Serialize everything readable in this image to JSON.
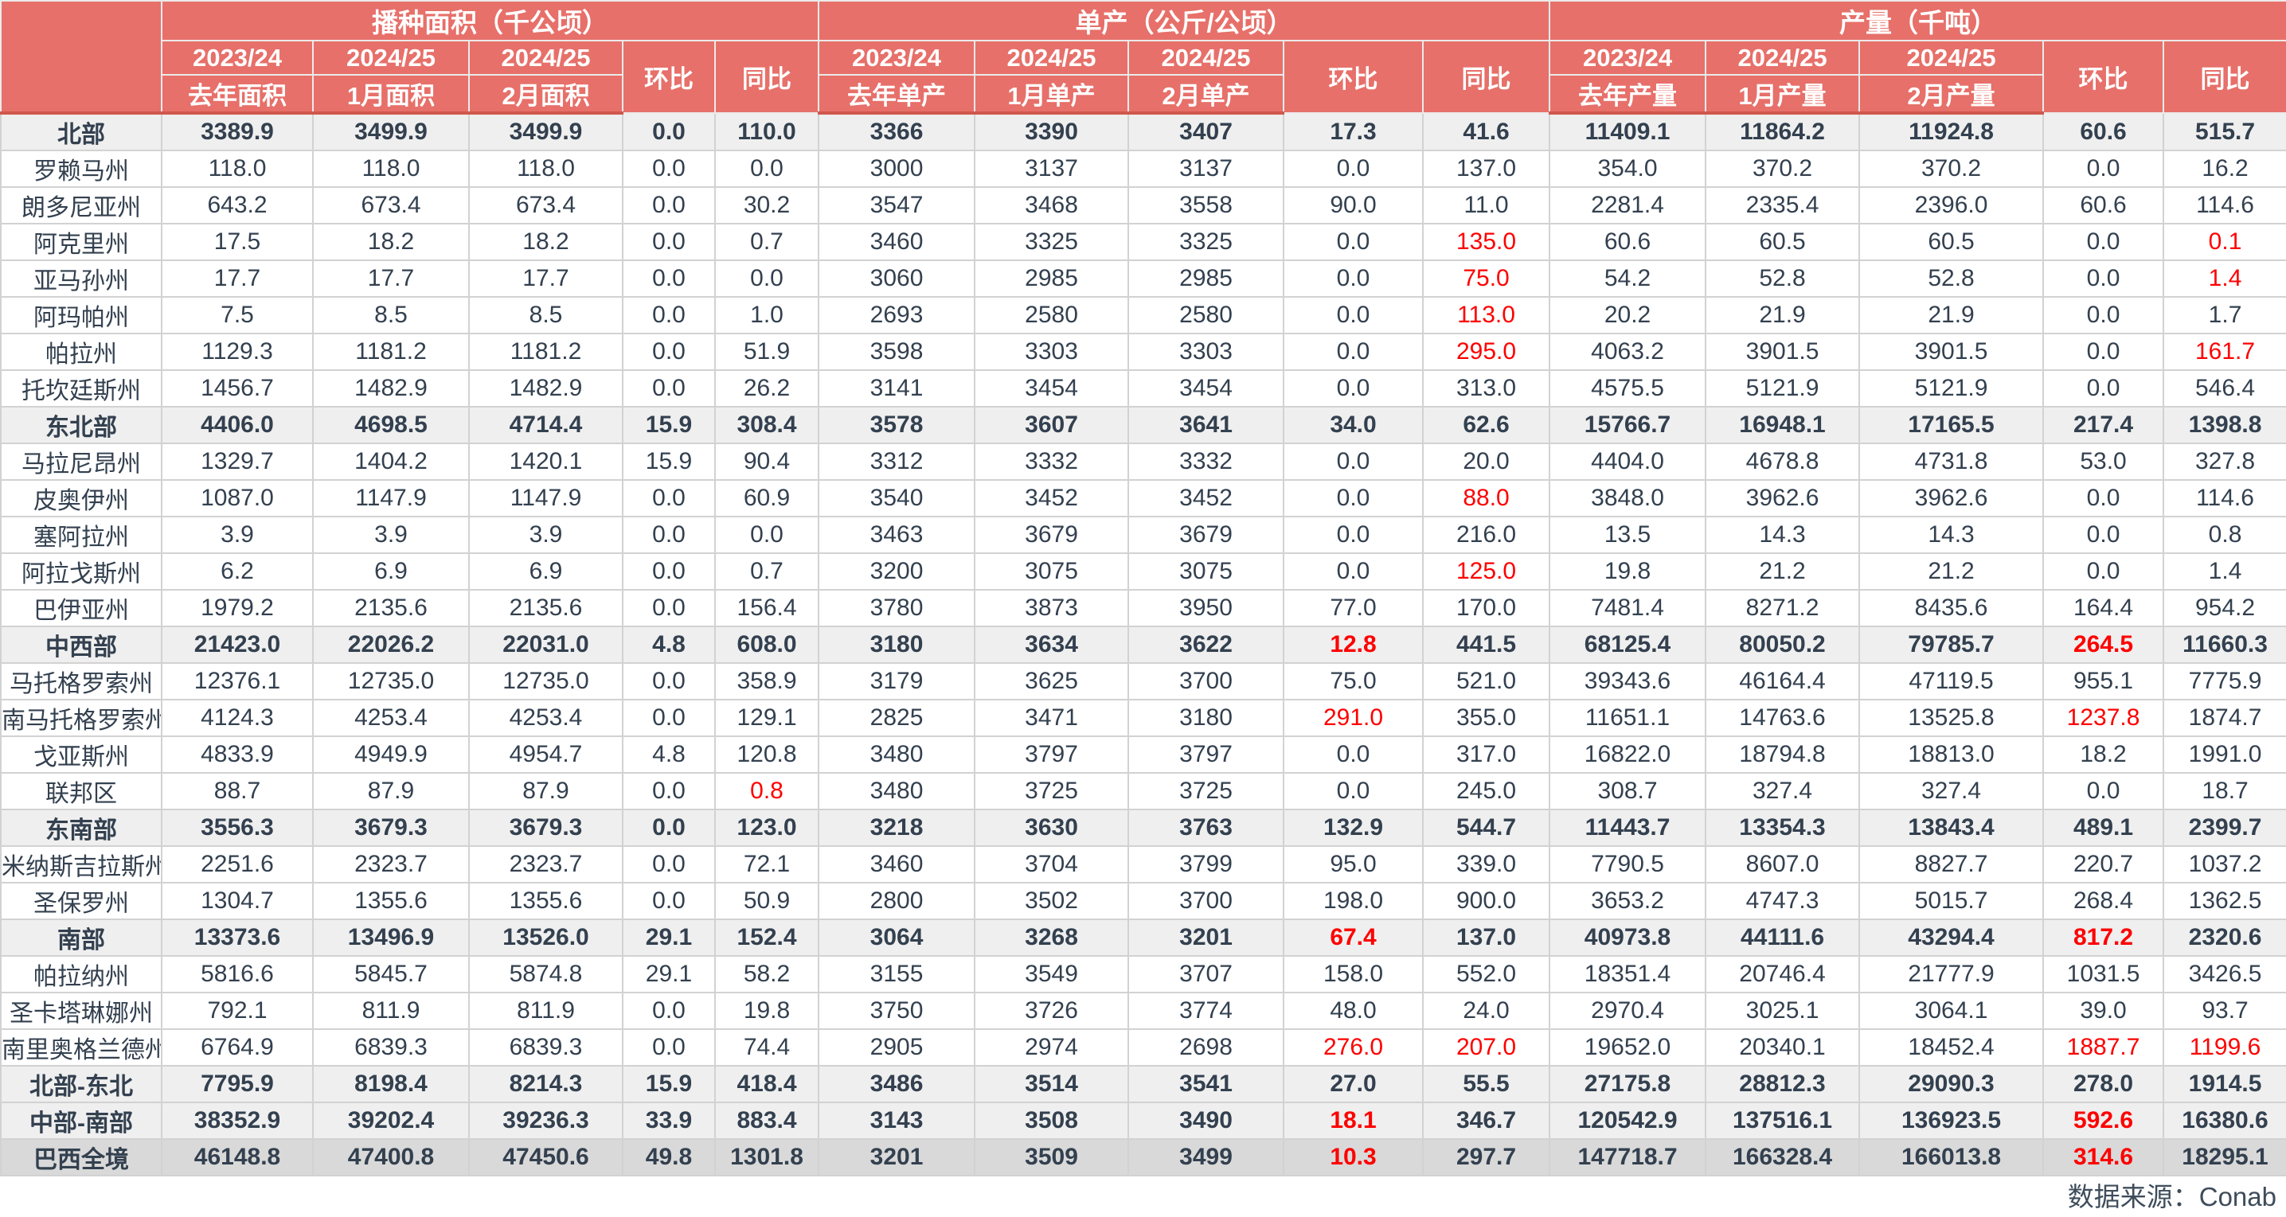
{
  "colors": {
    "header_bg": "#e7706a",
    "header_text": "#ffffff",
    "header_divider": "#d0574d",
    "body_text": "#33404f",
    "negative_red": "#fe0000",
    "region_row_bg": "#efefef",
    "total_row_bg": "#d9d9d9",
    "grid_line": "#d2d2d2"
  },
  "table": {
    "corner": "",
    "groups": [
      "播种面积（千公顷）",
      "单产（公斤/公顷）",
      "产量（千吨）"
    ],
    "years": [
      "2023/24",
      "2024/25",
      "2024/25"
    ],
    "mom": "环比",
    "yoy": "同比",
    "subs": [
      [
        "去年面积",
        "1月面积",
        "2月面积"
      ],
      [
        "去年单产",
        "1月单产",
        "2月单产"
      ],
      [
        "去年产量",
        "1月产量",
        "2月产量"
      ]
    ],
    "rows": [
      {
        "label": "北部",
        "type": "region",
        "cells": [
          "3389.9",
          "3499.9",
          "3499.9",
          "0.0",
          "110.0",
          "3366",
          "3390",
          "3407",
          "17.3",
          "41.6",
          "11409.1",
          "11864.2",
          "11924.8",
          "60.6",
          "515.7"
        ],
        "red": []
      },
      {
        "label": "罗赖马州",
        "type": "state",
        "cells": [
          "118.0",
          "118.0",
          "118.0",
          "0.0",
          "0.0",
          "3000",
          "3137",
          "3137",
          "0.0",
          "137.0",
          "354.0",
          "370.2",
          "370.2",
          "0.0",
          "16.2"
        ],
        "red": []
      },
      {
        "label": "朗多尼亚州",
        "type": "state",
        "cells": [
          "643.2",
          "673.4",
          "673.4",
          "0.0",
          "30.2",
          "3547",
          "3468",
          "3558",
          "90.0",
          "11.0",
          "2281.4",
          "2335.4",
          "2396.0",
          "60.6",
          "114.6"
        ],
        "red": []
      },
      {
        "label": "阿克里州",
        "type": "state",
        "cells": [
          "17.5",
          "18.2",
          "18.2",
          "0.0",
          "0.7",
          "3460",
          "3325",
          "3325",
          "0.0",
          "135.0",
          "60.6",
          "60.5",
          "60.5",
          "0.0",
          "0.1"
        ],
        "red": [
          9,
          14
        ]
      },
      {
        "label": "亚马孙州",
        "type": "state",
        "cells": [
          "17.7",
          "17.7",
          "17.7",
          "0.0",
          "0.0",
          "3060",
          "2985",
          "2985",
          "0.0",
          "75.0",
          "54.2",
          "52.8",
          "52.8",
          "0.0",
          "1.4"
        ],
        "red": [
          9,
          14
        ]
      },
      {
        "label": "阿玛帕州",
        "type": "state",
        "cells": [
          "7.5",
          "8.5",
          "8.5",
          "0.0",
          "1.0",
          "2693",
          "2580",
          "2580",
          "0.0",
          "113.0",
          "20.2",
          "21.9",
          "21.9",
          "0.0",
          "1.7"
        ],
        "red": [
          9
        ]
      },
      {
        "label": "帕拉州",
        "type": "state",
        "cells": [
          "1129.3",
          "1181.2",
          "1181.2",
          "0.0",
          "51.9",
          "3598",
          "3303",
          "3303",
          "0.0",
          "295.0",
          "4063.2",
          "3901.5",
          "3901.5",
          "0.0",
          "161.7"
        ],
        "red": [
          9,
          14
        ]
      },
      {
        "label": "托坎廷斯州",
        "type": "state",
        "cells": [
          "1456.7",
          "1482.9",
          "1482.9",
          "0.0",
          "26.2",
          "3141",
          "3454",
          "3454",
          "0.0",
          "313.0",
          "4575.5",
          "5121.9",
          "5121.9",
          "0.0",
          "546.4"
        ],
        "red": []
      },
      {
        "label": "东北部",
        "type": "region",
        "cells": [
          "4406.0",
          "4698.5",
          "4714.4",
          "15.9",
          "308.4",
          "3578",
          "3607",
          "3641",
          "34.0",
          "62.6",
          "15766.7",
          "16948.1",
          "17165.5",
          "217.4",
          "1398.8"
        ],
        "red": []
      },
      {
        "label": "马拉尼昂州",
        "type": "state",
        "cells": [
          "1329.7",
          "1404.2",
          "1420.1",
          "15.9",
          "90.4",
          "3312",
          "3332",
          "3332",
          "0.0",
          "20.0",
          "4404.0",
          "4678.8",
          "4731.8",
          "53.0",
          "327.8"
        ],
        "red": []
      },
      {
        "label": "皮奥伊州",
        "type": "state",
        "cells": [
          "1087.0",
          "1147.9",
          "1147.9",
          "0.0",
          "60.9",
          "3540",
          "3452",
          "3452",
          "0.0",
          "88.0",
          "3848.0",
          "3962.6",
          "3962.6",
          "0.0",
          "114.6"
        ],
        "red": [
          9
        ]
      },
      {
        "label": "塞阿拉州",
        "type": "state",
        "cells": [
          "3.9",
          "3.9",
          "3.9",
          "0.0",
          "0.0",
          "3463",
          "3679",
          "3679",
          "0.0",
          "216.0",
          "13.5",
          "14.3",
          "14.3",
          "0.0",
          "0.8"
        ],
        "red": []
      },
      {
        "label": "阿拉戈斯州",
        "type": "state",
        "cells": [
          "6.2",
          "6.9",
          "6.9",
          "0.0",
          "0.7",
          "3200",
          "3075",
          "3075",
          "0.0",
          "125.0",
          "19.8",
          "21.2",
          "21.2",
          "0.0",
          "1.4"
        ],
        "red": [
          9
        ]
      },
      {
        "label": "巴伊亚州",
        "type": "state",
        "cells": [
          "1979.2",
          "2135.6",
          "2135.6",
          "0.0",
          "156.4",
          "3780",
          "3873",
          "3950",
          "77.0",
          "170.0",
          "7481.4",
          "8271.2",
          "8435.6",
          "164.4",
          "954.2"
        ],
        "red": []
      },
      {
        "label": "中西部",
        "type": "region",
        "cells": [
          "21423.0",
          "22026.2",
          "22031.0",
          "4.8",
          "608.0",
          "3180",
          "3634",
          "3622",
          "12.8",
          "441.5",
          "68125.4",
          "80050.2",
          "79785.7",
          "264.5",
          "11660.3"
        ],
        "red": [
          8,
          13
        ]
      },
      {
        "label": "马托格罗索州",
        "type": "state",
        "cells": [
          "12376.1",
          "12735.0",
          "12735.0",
          "0.0",
          "358.9",
          "3179",
          "3625",
          "3700",
          "75.0",
          "521.0",
          "39343.6",
          "46164.4",
          "47119.5",
          "955.1",
          "7775.9"
        ],
        "red": []
      },
      {
        "label": "南马托格罗索州",
        "type": "state",
        "cells": [
          "4124.3",
          "4253.4",
          "4253.4",
          "0.0",
          "129.1",
          "2825",
          "3471",
          "3180",
          "291.0",
          "355.0",
          "11651.1",
          "14763.6",
          "13525.8",
          "1237.8",
          "1874.7"
        ],
        "red": [
          8,
          13
        ]
      },
      {
        "label": "戈亚斯州",
        "type": "state",
        "cells": [
          "4833.9",
          "4949.9",
          "4954.7",
          "4.8",
          "120.8",
          "3480",
          "3797",
          "3797",
          "0.0",
          "317.0",
          "16822.0",
          "18794.8",
          "18813.0",
          "18.2",
          "1991.0"
        ],
        "red": []
      },
      {
        "label": "联邦区",
        "type": "state",
        "cells": [
          "88.7",
          "87.9",
          "87.9",
          "0.0",
          "0.8",
          "3480",
          "3725",
          "3725",
          "0.0",
          "245.0",
          "308.7",
          "327.4",
          "327.4",
          "0.0",
          "18.7"
        ],
        "red": [
          4
        ]
      },
      {
        "label": "东南部",
        "type": "region",
        "cells": [
          "3556.3",
          "3679.3",
          "3679.3",
          "0.0",
          "123.0",
          "3218",
          "3630",
          "3763",
          "132.9",
          "544.7",
          "11443.7",
          "13354.3",
          "13843.4",
          "489.1",
          "2399.7"
        ],
        "red": []
      },
      {
        "label": "米纳斯吉拉斯州",
        "type": "state",
        "cells": [
          "2251.6",
          "2323.7",
          "2323.7",
          "0.0",
          "72.1",
          "3460",
          "3704",
          "3799",
          "95.0",
          "339.0",
          "7790.5",
          "8607.0",
          "8827.7",
          "220.7",
          "1037.2"
        ],
        "red": []
      },
      {
        "label": "圣保罗州",
        "type": "state",
        "cells": [
          "1304.7",
          "1355.6",
          "1355.6",
          "0.0",
          "50.9",
          "2800",
          "3502",
          "3700",
          "198.0",
          "900.0",
          "3653.2",
          "4747.3",
          "5015.7",
          "268.4",
          "1362.5"
        ],
        "red": []
      },
      {
        "label": "南部",
        "type": "region",
        "cells": [
          "13373.6",
          "13496.9",
          "13526.0",
          "29.1",
          "152.4",
          "3064",
          "3268",
          "3201",
          "67.4",
          "137.0",
          "40973.8",
          "44111.6",
          "43294.4",
          "817.2",
          "2320.6"
        ],
        "red": [
          8,
          13
        ]
      },
      {
        "label": "帕拉纳州",
        "type": "state",
        "cells": [
          "5816.6",
          "5845.7",
          "5874.8",
          "29.1",
          "58.2",
          "3155",
          "3549",
          "3707",
          "158.0",
          "552.0",
          "18351.4",
          "20746.4",
          "21777.9",
          "1031.5",
          "3426.5"
        ],
        "red": []
      },
      {
        "label": "圣卡塔琳娜州",
        "type": "state",
        "cells": [
          "792.1",
          "811.9",
          "811.9",
          "0.0",
          "19.8",
          "3750",
          "3726",
          "3774",
          "48.0",
          "24.0",
          "2970.4",
          "3025.1",
          "3064.1",
          "39.0",
          "93.7"
        ],
        "red": []
      },
      {
        "label": "南里奥格兰德州",
        "type": "state",
        "cells": [
          "6764.9",
          "6839.3",
          "6839.3",
          "0.0",
          "74.4",
          "2905",
          "2974",
          "2698",
          "276.0",
          "207.0",
          "19652.0",
          "20340.1",
          "18452.4",
          "1887.7",
          "1199.6"
        ],
        "red": [
          8,
          9,
          13,
          14
        ]
      },
      {
        "label": "北部-东北",
        "type": "region",
        "cells": [
          "7795.9",
          "8198.4",
          "8214.3",
          "15.9",
          "418.4",
          "3486",
          "3514",
          "3541",
          "27.0",
          "55.5",
          "27175.8",
          "28812.3",
          "29090.3",
          "278.0",
          "1914.5"
        ],
        "red": []
      },
      {
        "label": "中部-南部",
        "type": "region",
        "cells": [
          "38352.9",
          "39202.4",
          "39236.3",
          "33.9",
          "883.4",
          "3143",
          "3508",
          "3490",
          "18.1",
          "346.7",
          "120542.9",
          "137516.1",
          "136923.5",
          "592.6",
          "16380.6"
        ],
        "red": [
          8,
          13
        ]
      },
      {
        "label": "巴西全境",
        "type": "total",
        "cells": [
          "46148.8",
          "47400.8",
          "47450.6",
          "49.8",
          "1301.8",
          "3201",
          "3509",
          "3499",
          "10.3",
          "297.7",
          "147718.7",
          "166328.4",
          "166013.8",
          "314.6",
          "18295.1"
        ],
        "red": [
          8,
          13
        ]
      }
    ]
  },
  "footer": {
    "source": "数据来源：Conab"
  }
}
